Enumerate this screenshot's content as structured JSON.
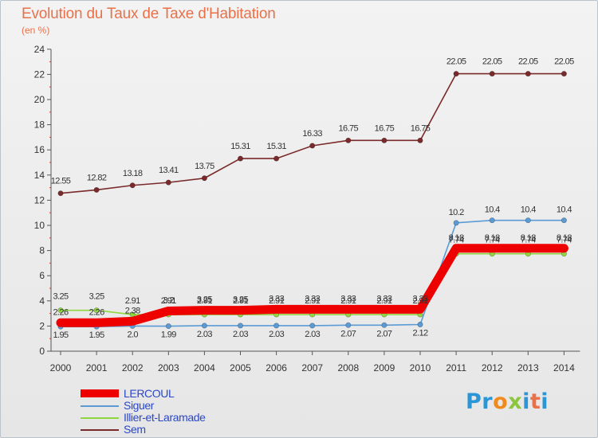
{
  "title": "Evolution du Taux de Taxe d'Habitation",
  "subtitle": "(en %)",
  "logo_text": "Proxiti",
  "chart_data": {
    "type": "line",
    "title": "Evolution du Taux de Taxe d'Habitation",
    "subtitle": "(en %)",
    "xlabel": "",
    "ylabel": "",
    "x": [
      "2000",
      "2001",
      "2002",
      "2003",
      "2004",
      "2005",
      "2006",
      "2007",
      "2008",
      "2009",
      "2010",
      "2011",
      "2012",
      "2013",
      "2014"
    ],
    "ylim": [
      0,
      24
    ],
    "yticks": [
      0,
      2,
      4,
      6,
      8,
      10,
      12,
      14,
      16,
      18,
      20,
      22,
      24
    ],
    "grid": false,
    "legend_position": "bottom-left",
    "series": [
      {
        "name": "LERCOUL",
        "color": "#ee0000",
        "values": [
          2.26,
          2.26,
          2.38,
          3.2,
          3.25,
          3.25,
          3.33,
          3.33,
          3.33,
          3.33,
          3.33,
          8.18,
          8.18,
          8.18,
          8.18
        ],
        "labels": [
          "2.26",
          "2.26",
          "2.38",
          "3.2",
          "3.25",
          "3.25",
          "3.33",
          "3.33",
          "3.33",
          "3.33",
          "3.33",
          "8.18",
          "8.18",
          "8.18",
          "8.18"
        ]
      },
      {
        "name": "Siguer",
        "color": "#5b9bd5",
        "values": [
          1.95,
          1.95,
          2.0,
          1.99,
          2.03,
          2.03,
          2.03,
          2.03,
          2.07,
          2.07,
          2.12,
          10.2,
          10.4,
          10.4,
          10.4
        ],
        "labels": [
          "1.95",
          "1.95",
          "2.0",
          "1.99",
          "2.03",
          "2.03",
          "2.03",
          "2.03",
          "2.07",
          "2.07",
          "2.12",
          "10.2",
          "10.4",
          "10.4",
          "10.4"
        ]
      },
      {
        "name": "Illier-et-Laramade",
        "color": "#8fd640",
        "values": [
          3.25,
          3.25,
          2.91,
          2.91,
          2.91,
          2.91,
          2.91,
          2.91,
          2.91,
          2.91,
          2.91,
          7.74,
          7.74,
          7.74,
          7.74
        ],
        "labels": [
          "3.25",
          "3.25",
          "2.91",
          "2.91",
          "2.91",
          "2.91",
          "2.91",
          "2.91",
          "2.91",
          "2.91",
          "2.91",
          "7.74",
          "7.74",
          "7.74",
          "7.74"
        ]
      },
      {
        "name": "Sem",
        "color": "#7a2a2a",
        "values": [
          12.55,
          12.82,
          13.18,
          13.41,
          13.75,
          15.31,
          15.31,
          16.33,
          16.75,
          16.75,
          16.75,
          22.05,
          22.05,
          22.05,
          22.05
        ],
        "labels": [
          "12.55",
          "12.82",
          "13.18",
          "13.41",
          "13.75",
          "15.31",
          "15.31",
          "16.33",
          "16.75",
          "16.75",
          "16.75",
          "22.05",
          "22.05",
          "22.05",
          "22.05"
        ]
      }
    ]
  }
}
